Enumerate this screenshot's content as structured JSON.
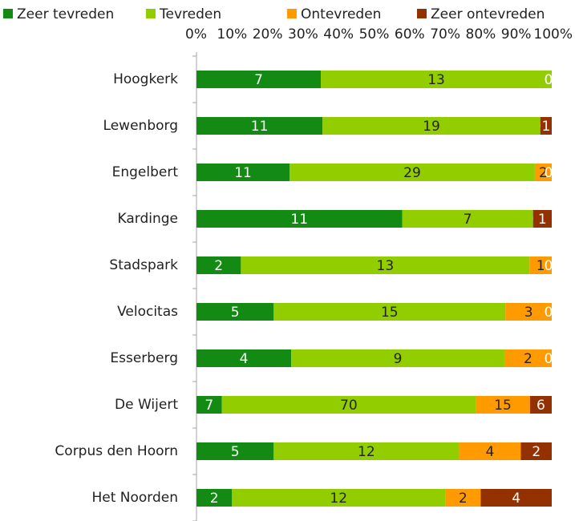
{
  "chart_data": {
    "type": "bar",
    "orientation": "horizontal",
    "stacked": "percent",
    "categories": [
      "Hoogkerk",
      "Lewenborg",
      "Engelbert",
      "Kardinge",
      "Stadspark",
      "Velocitas",
      "Esserberg",
      "De Wijert",
      "Corpus den Hoorn",
      "Het Noorden"
    ],
    "series": [
      {
        "name": "Zeer tevreden",
        "color": "#138a13",
        "values": [
          7,
          11,
          11,
          11,
          2,
          5,
          4,
          7,
          5,
          2
        ]
      },
      {
        "name": "Tevreden",
        "color": "#92cd00",
        "values": [
          13,
          19,
          29,
          7,
          13,
          15,
          9,
          70,
          12,
          12
        ]
      },
      {
        "name": "Ontevreden",
        "color": "#ff9b00",
        "values": [
          0,
          0,
          2,
          0,
          1,
          3,
          2,
          15,
          4,
          2
        ]
      },
      {
        "name": "Zeer ontevreden",
        "color": "#943100",
        "values": [
          0,
          1,
          0,
          1,
          0,
          0,
          0,
          6,
          2,
          4
        ]
      }
    ],
    "xlim": [
      0,
      100
    ],
    "xticks": [
      {
        "value": 0,
        "label": "0%"
      },
      {
        "value": 10,
        "label": "10%"
      },
      {
        "value": 20,
        "label": "20%"
      },
      {
        "value": 30,
        "label": "30%"
      },
      {
        "value": 40,
        "label": "40%"
      },
      {
        "value": 50,
        "label": "50%"
      },
      {
        "value": 60,
        "label": "60%"
      },
      {
        "value": 70,
        "label": "70%"
      },
      {
        "value": 80,
        "label": "80%"
      },
      {
        "value": 90,
        "label": "90%"
      },
      {
        "value": 100,
        "label": "100%"
      }
    ],
    "legend": "top",
    "grid": false
  }
}
